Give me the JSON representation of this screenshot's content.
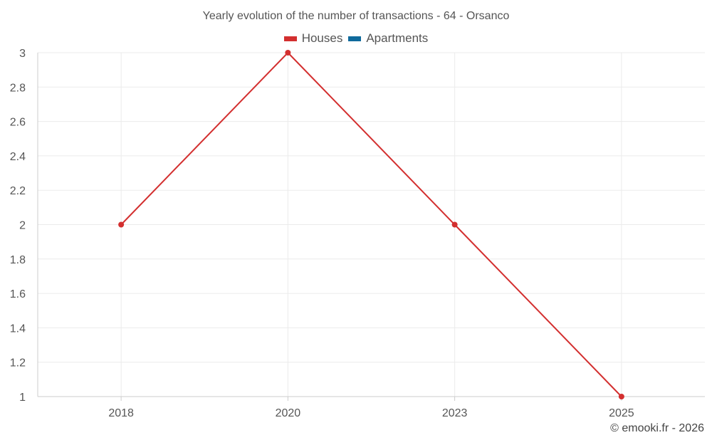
{
  "chart_data": {
    "type": "line",
    "title": "Yearly evolution of the number of transactions - 64 - Orsanco",
    "categories": [
      "2018",
      "2020",
      "2023",
      "2025"
    ],
    "series": [
      {
        "name": "Houses",
        "color": "#d32f2f",
        "values": [
          2,
          3,
          2,
          1
        ]
      },
      {
        "name": "Apartments",
        "color": "#0f6a9c",
        "values": [
          null,
          null,
          null,
          null
        ]
      }
    ],
    "ylim": [
      1,
      3
    ],
    "yticks": [
      "1",
      "1.2",
      "1.4",
      "1.6",
      "1.8",
      "2",
      "2.2",
      "2.4",
      "2.6",
      "2.8",
      "3"
    ],
    "grid": true,
    "legend_position": "top-center"
  },
  "footer": {
    "credit": "© emooki.fr - 2026"
  }
}
